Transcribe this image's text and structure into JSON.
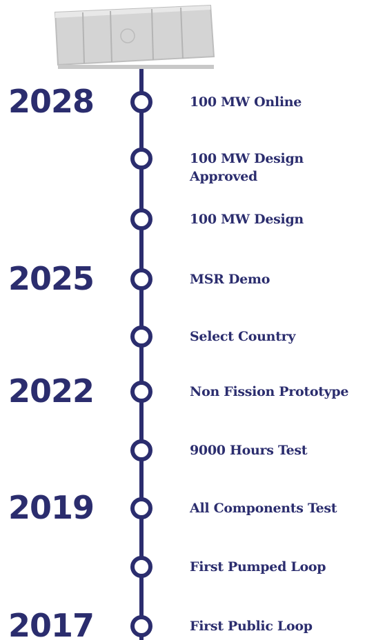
{
  "timeline": {
    "milestones": [
      {
        "year": "2028",
        "lines": [
          "100 MW Online"
        ]
      },
      {
        "lines": [
          "100 MW Design",
          "Approved"
        ]
      },
      {
        "lines": [
          "100 MW Design"
        ]
      },
      {
        "year": "2025",
        "lines": [
          "MSR Demo"
        ]
      },
      {
        "lines": [
          "Select Country"
        ]
      },
      {
        "year": "2022",
        "lines": [
          "Non Fission Prototype"
        ]
      },
      {
        "lines": [
          "9000 Hours Test"
        ]
      },
      {
        "year": "2019",
        "lines": [
          "All Components Test"
        ]
      },
      {
        "lines": [
          "First Pumped Loop"
        ]
      },
      {
        "year": "2017",
        "lines": [
          "First Public Loop"
        ]
      }
    ]
  }
}
